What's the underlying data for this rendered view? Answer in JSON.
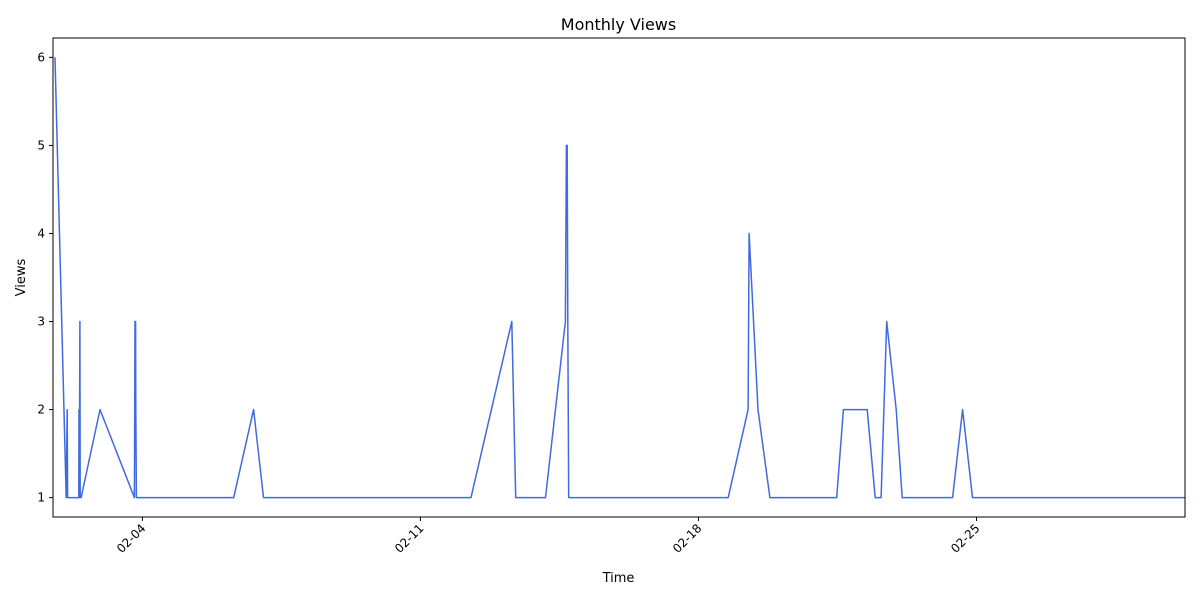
{
  "chart_data": {
    "type": "line",
    "title": "Monthly Views",
    "xlabel": "Time",
    "ylabel": "Views",
    "line_color": "#4169e1",
    "grid": false,
    "legend": "none",
    "x_ticks": [
      "2024-02-04",
      "2024-02-11",
      "2024-02-18",
      "2024-02-25"
    ],
    "x_tick_labels": [
      "02-04",
      "02-11",
      "02-18",
      "02-25"
    ],
    "y_ticks": [
      1,
      2,
      3,
      4,
      5,
      6
    ],
    "xlim": [
      "2024-02-01T18:00",
      "2024-03-01T06:00"
    ],
    "ylim": [
      0.78,
      6.22
    ],
    "series": [
      {
        "x": [
          "2024-02-01T19:12",
          "2024-02-02T02:00",
          "2024-02-02T02:36",
          "2024-02-02T02:48",
          "2024-02-02T09:36",
          "2024-02-02T09:43",
          "2024-02-02T09:55",
          "2024-02-02T10:14",
          "2024-02-02T10:26",
          "2024-02-02T10:34",
          "2024-02-02T10:41",
          "2024-02-02T11:00",
          "2024-02-02T22:24",
          "2024-02-03T19:12",
          "2024-02-03T19:34",
          "2024-02-03T19:55",
          "2024-02-03T20:02",
          "2024-02-03T20:24",
          "2024-02-03T23:02",
          "2024-02-04T00:07",
          "2024-02-06T07:12",
          "2024-02-06T19:12",
          "2024-02-07T01:12",
          "2024-02-12T06:36",
          "2024-02-13T07:12",
          "2024-02-13T09:36",
          "2024-02-14T03:36",
          "2024-02-14T15:36",
          "2024-02-14T16:12",
          "2024-02-14T16:43",
          "2024-02-14T17:02",
          "2024-02-14T17:36",
          "2024-02-18T18:00",
          "2024-02-19T06:00",
          "2024-02-19T06:36",
          "2024-02-19T12:00",
          "2024-02-19T19:12",
          "2024-02-21T11:31",
          "2024-02-21T15:36",
          "2024-02-22T06:00",
          "2024-02-22T10:48",
          "2024-02-22T14:24",
          "2024-02-22T14:24",
          "2024-02-22T17:46",
          "2024-02-22T23:31",
          "2024-02-23T03:07",
          "2024-02-23T06:00",
          "2024-02-23T07:12",
          "2024-02-23T16:48",
          "2024-02-24T09:36",
          "2024-02-24T15:36",
          "2024-02-24T15:36",
          "2024-02-24T21:36",
          "2024-02-25T03:36",
          "2024-03-01T05:53"
        ],
        "values": [
          6,
          1,
          2,
          1,
          1,
          2,
          1,
          3,
          1,
          1,
          1,
          1,
          2,
          1,
          3,
          3,
          2,
          1,
          1,
          1,
          1,
          2,
          1,
          1,
          3,
          1,
          1,
          3,
          5,
          5,
          3,
          1,
          1,
          2,
          4,
          2,
          1,
          1,
          2,
          2,
          1,
          1,
          1,
          3,
          2,
          1,
          1,
          1,
          1,
          1,
          2,
          2,
          1,
          1,
          1
        ]
      }
    ]
  }
}
